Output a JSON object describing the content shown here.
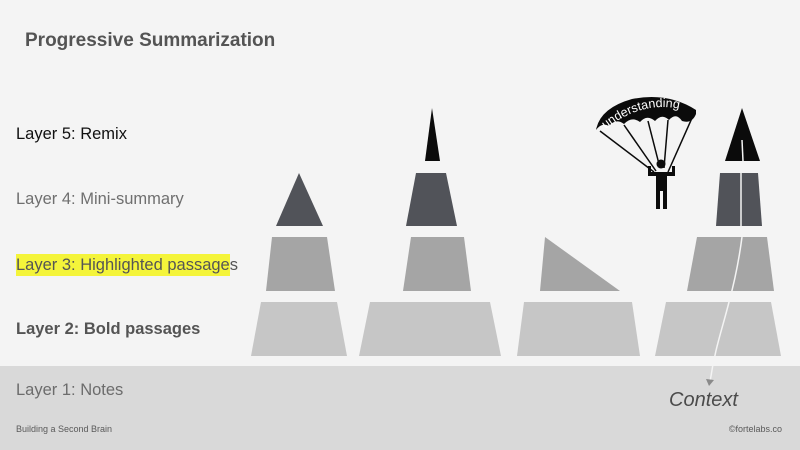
{
  "title": "Progressive Summarization",
  "layers": {
    "layer5": "Layer 5: Remix",
    "layer4": "Layer 4: Mini-summary",
    "layer3_highlighted": "Layer 3: Highlighted passage",
    "layer3_tail": "s",
    "layer2": "Bold passages",
    "layer2_prefix": "Layer 2: ",
    "layer1": "Layer 1: Notes"
  },
  "parachute_label": "understanding",
  "context_label": "Context",
  "footer": {
    "left": "Building a Second Brain",
    "right": "©fortelabs.co"
  },
  "colors": {
    "background": "#f4f4f4",
    "ground": "#d9d9d9",
    "layer2_fill": "#c6c6c6",
    "layer3_fill": "#a5a5a5",
    "layer4_fill": "#515359",
    "layer5_fill": "#0b0b0b",
    "highlight": "#f4f43a"
  }
}
